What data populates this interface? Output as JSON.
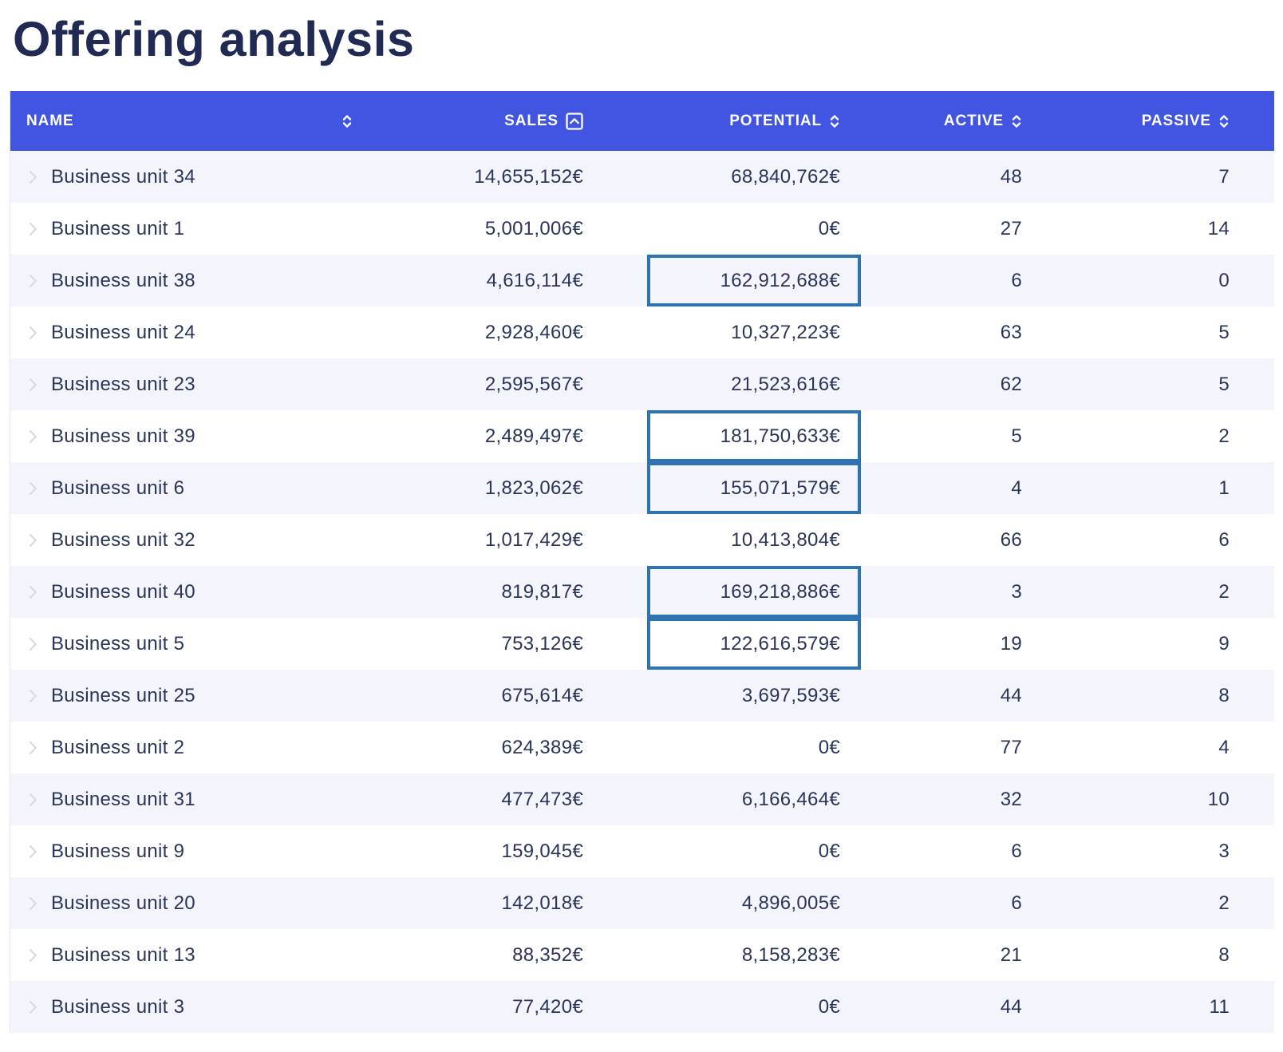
{
  "page_title": "Offering analysis",
  "colors": {
    "header_bg": "#4254e2",
    "row_alt": "#f4f5fc",
    "cell_text": "#2b3459",
    "title_text": "#202a52",
    "highlight_border": "#2e74b5",
    "chevron": "#d8dbe3",
    "frame_border": "#e7e8ee"
  },
  "table": {
    "columns": [
      {
        "key": "name",
        "label": "NAME",
        "sort_icon": "sort-updown-icon"
      },
      {
        "key": "sales",
        "label": "SALES",
        "sort_icon": "sort-box-up-icon"
      },
      {
        "key": "potential",
        "label": "POTENTIAL",
        "sort_icon": "sort-updown-icon"
      },
      {
        "key": "active",
        "label": "ACTIVE",
        "sort_icon": "sort-updown-icon"
      },
      {
        "key": "passive",
        "label": "PASSIVE",
        "sort_icon": "sort-updown-icon"
      }
    ],
    "rows": [
      {
        "name": "Business unit 34",
        "sales": "14,655,152€",
        "potential": "68,840,762€",
        "active": "48",
        "passive": "7",
        "potential_highlighted": false
      },
      {
        "name": "Business unit 1",
        "sales": "5,001,006€",
        "potential": "0€",
        "active": "27",
        "passive": "14",
        "potential_highlighted": false
      },
      {
        "name": "Business unit 38",
        "sales": "4,616,114€",
        "potential": "162,912,688€",
        "active": "6",
        "passive": "0",
        "potential_highlighted": true
      },
      {
        "name": "Business unit 24",
        "sales": "2,928,460€",
        "potential": "10,327,223€",
        "active": "63",
        "passive": "5",
        "potential_highlighted": false
      },
      {
        "name": "Business unit 23",
        "sales": "2,595,567€",
        "potential": "21,523,616€",
        "active": "62",
        "passive": "5",
        "potential_highlighted": false
      },
      {
        "name": "Business unit 39",
        "sales": "2,489,497€",
        "potential": "181,750,633€",
        "active": "5",
        "passive": "2",
        "potential_highlighted": true
      },
      {
        "name": "Business unit 6",
        "sales": "1,823,062€",
        "potential": "155,071,579€",
        "active": "4",
        "passive": "1",
        "potential_highlighted": true
      },
      {
        "name": "Business unit 32",
        "sales": "1,017,429€",
        "potential": "10,413,804€",
        "active": "66",
        "passive": "6",
        "potential_highlighted": false
      },
      {
        "name": "Business unit 40",
        "sales": "819,817€",
        "potential": "169,218,886€",
        "active": "3",
        "passive": "2",
        "potential_highlighted": true
      },
      {
        "name": "Business unit 5",
        "sales": "753,126€",
        "potential": "122,616,579€",
        "active": "19",
        "passive": "9",
        "potential_highlighted": true
      },
      {
        "name": "Business unit 25",
        "sales": "675,614€",
        "potential": "3,697,593€",
        "active": "44",
        "passive": "8",
        "potential_highlighted": false
      },
      {
        "name": "Business unit 2",
        "sales": "624,389€",
        "potential": "0€",
        "active": "77",
        "passive": "4",
        "potential_highlighted": false
      },
      {
        "name": "Business unit 31",
        "sales": "477,473€",
        "potential": "6,166,464€",
        "active": "32",
        "passive": "10",
        "potential_highlighted": false
      },
      {
        "name": "Business unit 9",
        "sales": "159,045€",
        "potential": "0€",
        "active": "6",
        "passive": "3",
        "potential_highlighted": false
      },
      {
        "name": "Business unit 20",
        "sales": "142,018€",
        "potential": "4,896,005€",
        "active": "6",
        "passive": "2",
        "potential_highlighted": false
      },
      {
        "name": "Business unit 13",
        "sales": "88,352€",
        "potential": "8,158,283€",
        "active": "21",
        "passive": "8",
        "potential_highlighted": false
      },
      {
        "name": "Business unit 3",
        "sales": "77,420€",
        "potential": "0€",
        "active": "44",
        "passive": "11",
        "potential_highlighted": false
      }
    ]
  }
}
